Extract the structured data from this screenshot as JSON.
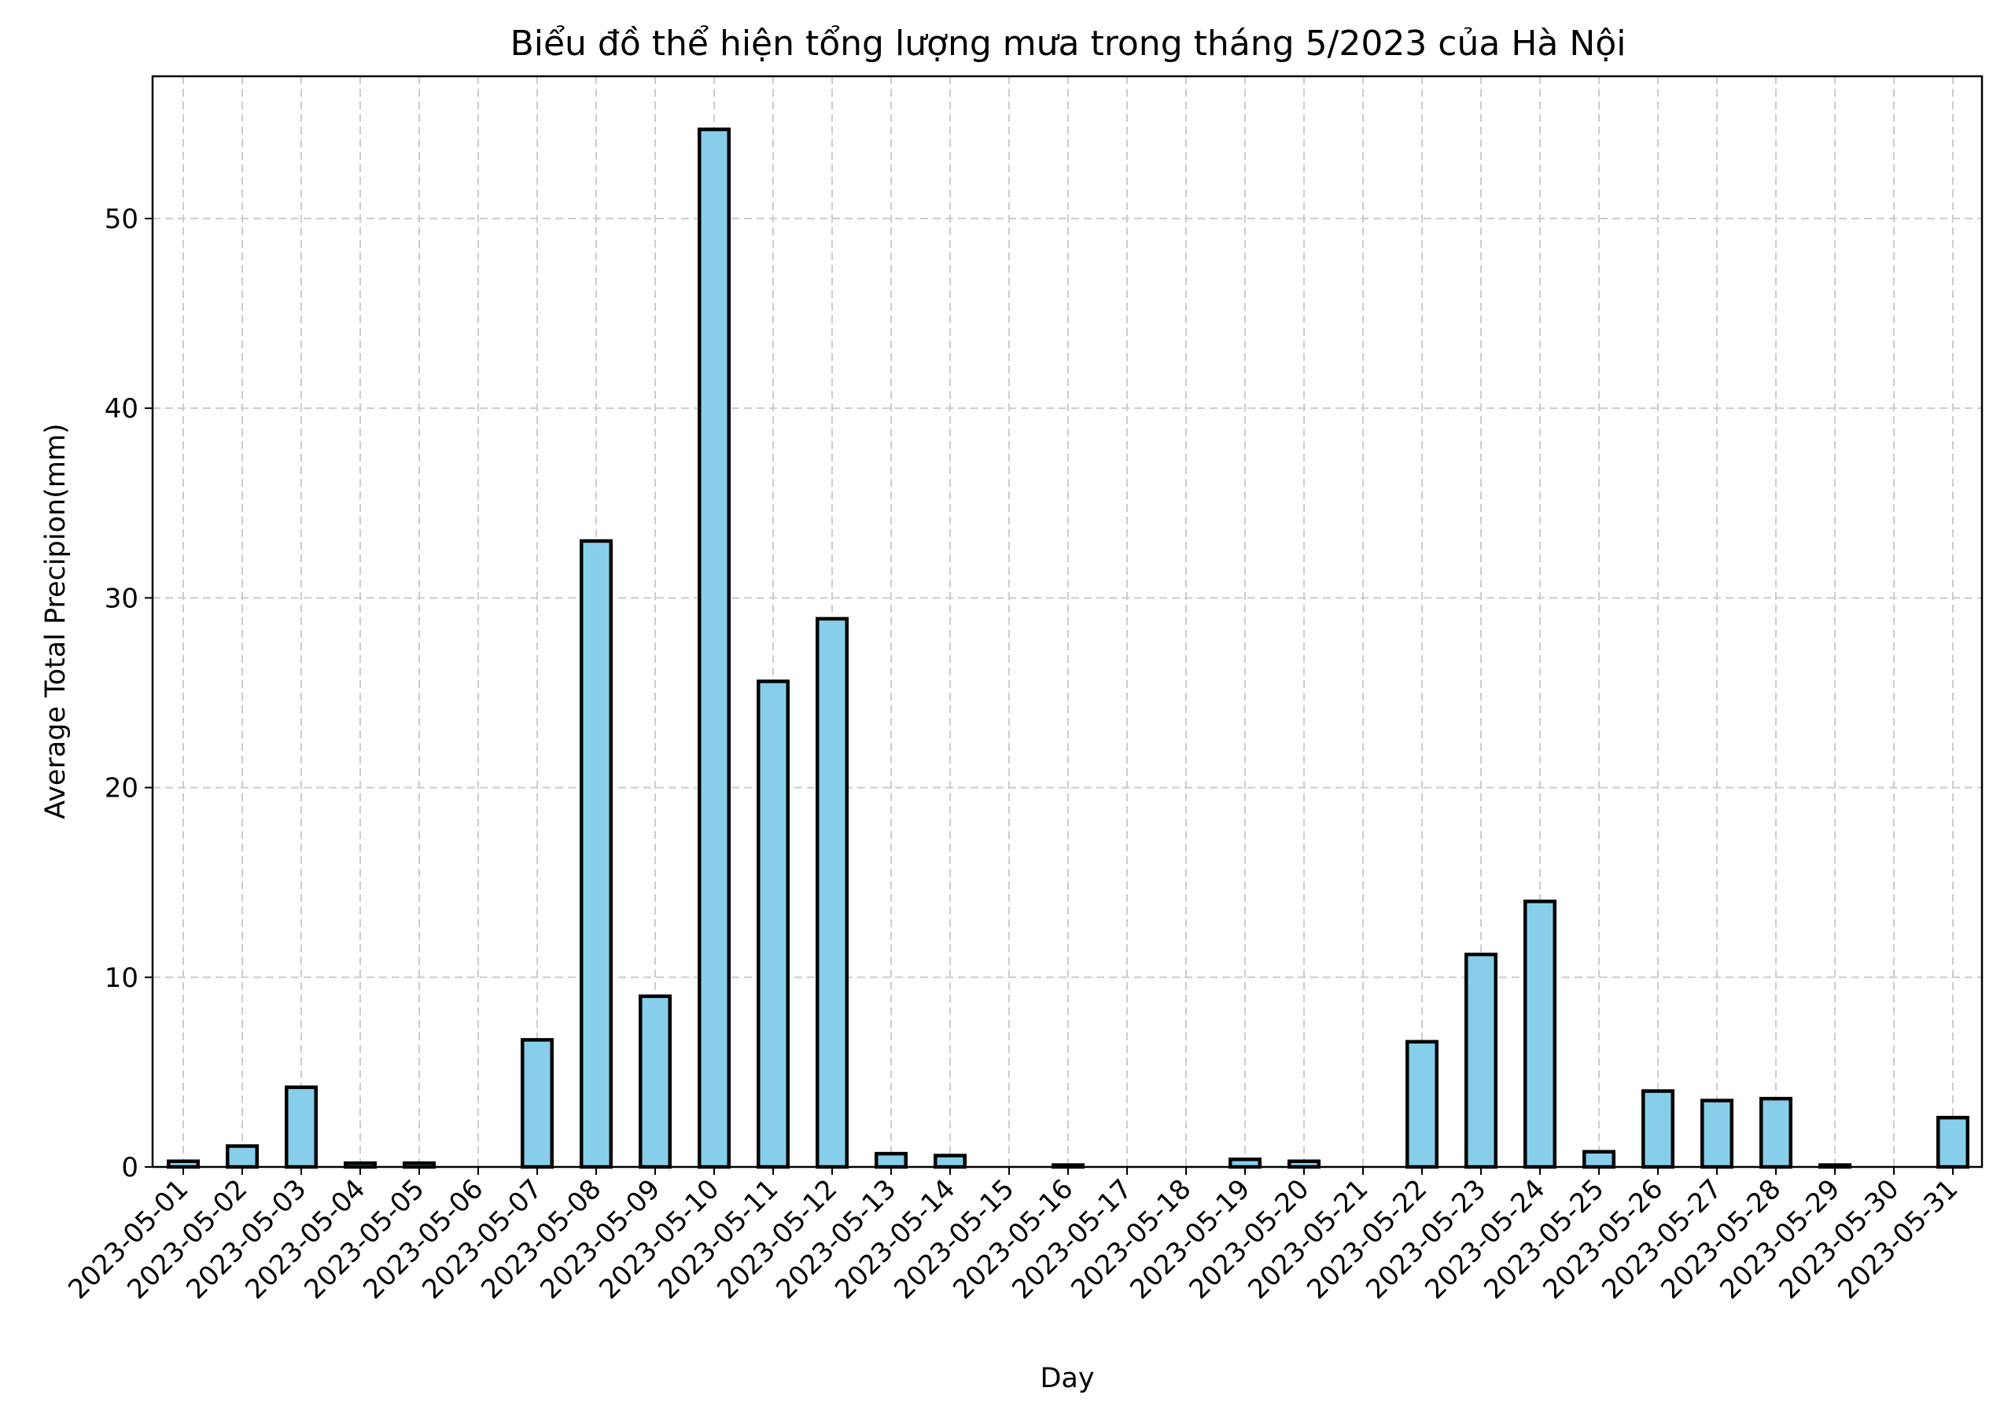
{
  "chart_data": {
    "type": "bar",
    "title": "Biểu đồ thể hiện tổng lượng mưa trong tháng 5/2023 của Hà Nội",
    "xlabel": "Day",
    "ylabel": "Average Total Precipion(mm)",
    "categories": [
      "2023-05-01",
      "2023-05-02",
      "2023-05-03",
      "2023-05-04",
      "2023-05-05",
      "2023-05-06",
      "2023-05-07",
      "2023-05-08",
      "2023-05-09",
      "2023-05-10",
      "2023-05-11",
      "2023-05-12",
      "2023-05-13",
      "2023-05-14",
      "2023-05-15",
      "2023-05-16",
      "2023-05-17",
      "2023-05-18",
      "2023-05-19",
      "2023-05-20",
      "2023-05-21",
      "2023-05-22",
      "2023-05-23",
      "2023-05-24",
      "2023-05-25",
      "2023-05-26",
      "2023-05-27",
      "2023-05-28",
      "2023-05-29",
      "2023-05-30",
      "2023-05-31"
    ],
    "values": [
      0.3,
      1.1,
      4.2,
      0.2,
      0.2,
      0.0,
      6.7,
      33.0,
      9.0,
      54.7,
      25.6,
      28.9,
      0.7,
      0.6,
      0.0,
      0.1,
      0.0,
      0.0,
      0.4,
      0.3,
      0.0,
      6.6,
      11.2,
      14.0,
      0.8,
      4.0,
      3.5,
      3.6,
      0.1,
      0.0,
      2.6
    ],
    "ylim": [
      0,
      57.5
    ],
    "yticks": [
      0,
      10,
      20,
      30,
      40,
      50
    ],
    "grid": true,
    "bar_color": "#87ceeb",
    "edge_color": "#000000"
  }
}
